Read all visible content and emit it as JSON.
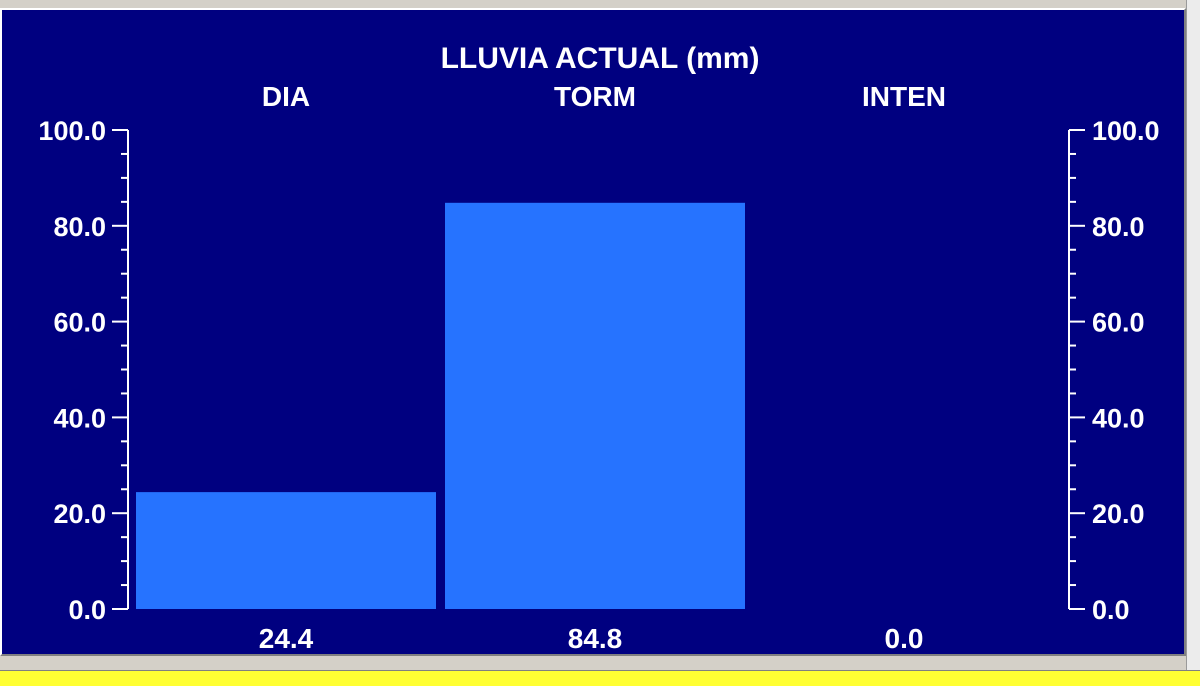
{
  "colors": {
    "background": "#000080",
    "bar": "#2673ff",
    "text": "#ffffff",
    "axis": "#ffffff",
    "bottom_strip": "#ffff33"
  },
  "chart_data": {
    "type": "bar",
    "title": "LLUVIA ACTUAL  (mm)",
    "categories": [
      "DIA",
      "TORM",
      "INTEN"
    ],
    "values": [
      24.4,
      84.8,
      0.0
    ],
    "value_labels": [
      "24.4",
      "84.8",
      "0.0"
    ],
    "ylim": [
      0,
      100
    ],
    "y_ticks": [
      "0.0",
      "20.0",
      "40.0",
      "60.0",
      "80.0",
      "100.0"
    ],
    "y_tick_values": [
      0,
      20,
      40,
      60,
      80,
      100
    ],
    "axes": [
      "left",
      "right"
    ],
    "grid": false,
    "legend": "none"
  }
}
